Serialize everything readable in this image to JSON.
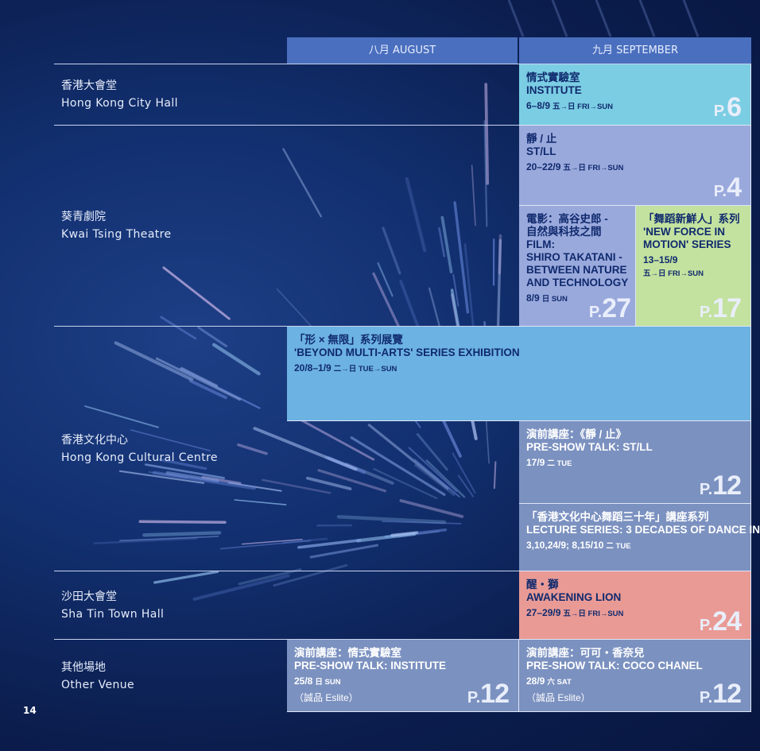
{
  "months": {
    "august": "八月 AUGUST",
    "september": "九月 SEPTEMBER"
  },
  "venues": [
    {
      "zh": "香港大會堂",
      "en": "Hong Kong City Hall"
    },
    {
      "zh": "葵青劇院",
      "en": "Kwai Tsing Theatre"
    },
    {
      "zh": "香港文化中心",
      "en": "Hong Kong Cultural Centre"
    },
    {
      "zh": "沙田大會堂",
      "en": "Sha Tin Town Hall"
    },
    {
      "zh": "其他場地",
      "en": "Other Venue"
    }
  ],
  "events": {
    "institute": {
      "zh": "情式實驗室",
      "en": "INSTITUTE",
      "date": "6–8/9",
      "days": "五→日 FRI→SUN",
      "page_prefix": "P.",
      "page": "6",
      "color": "#7bcde3"
    },
    "still": {
      "zh": "靜 / 止",
      "en": "ST/LL",
      "date": "20–22/9",
      "days": "五→日 FRI→SUN",
      "page_prefix": "P.",
      "page": "4",
      "color": "#9aa9dc"
    },
    "film": {
      "zh1": "電影：高谷史郎 -",
      "zh2": "自然與科技之間",
      "en1": "FILM:",
      "en2": "SHIRO TAKATANI -",
      "en3": "BETWEEN NATURE",
      "en4": "AND TECHNOLOGY",
      "date": "8/9",
      "days": "日 SUN",
      "page_prefix": "P.",
      "page": "27",
      "color": "#9aa9dc"
    },
    "new_force": {
      "zh": "「舞蹈新鮮人」系列",
      "en1": "'NEW FORCE IN",
      "en2": "MOTION' SERIES",
      "date": "13–15/9",
      "days": "五→日 FRI→SUN",
      "page_prefix": "P.",
      "page": "17",
      "color": "#c3e29f"
    },
    "beyond": {
      "zh": "「形 × 無限」系列展覽",
      "en": "'BEYOND MULTI-ARTS' SERIES EXHIBITION",
      "date": "20/8–1/9",
      "days": "二→日 TUE→SUN",
      "color": "#6cb2e2"
    },
    "talk_still": {
      "zh": "演前講座：《靜 / 止》",
      "en": "PRE-SHOW TALK: ST/LL",
      "date": "17/9",
      "days": "二 TUE",
      "page_prefix": "P.",
      "page": "12",
      "color": "#7b91c0"
    },
    "lecture": {
      "zh": "「香港文化中心舞蹈三十年」講座系列",
      "en": "LECTURE SERIES: 3 DECADES OF DANCE IN",
      "date": "3,10,24/9; 8,15/10",
      "days": "二 TUE",
      "color": "#7b91c0"
    },
    "lion": {
      "zh": "醒・獅",
      "en": "AWAKENING LION",
      "date": "27–29/9",
      "days": "五→日 FRI→SUN",
      "page_prefix": "P.",
      "page": "24",
      "color": "#e99a95"
    },
    "talk_institute": {
      "zh": "演前講座：情式實驗室",
      "en": "PRE-SHOW TALK: INSTITUTE",
      "date": "25/8",
      "days": "日 SUN",
      "note": "（誠品 Eslite）",
      "page_prefix": "P.",
      "page": "12",
      "color": "#7b91c0"
    },
    "talk_coco": {
      "zh": "演前講座：可可・香奈兒",
      "en": "PRE-SHOW TALK: COCO CHANEL",
      "date": "28/9",
      "days": "六 SAT",
      "note": "（誠品 Eslite）",
      "page_prefix": "P.",
      "page": "12",
      "color": "#7b91c0"
    }
  },
  "page_number": "14"
}
